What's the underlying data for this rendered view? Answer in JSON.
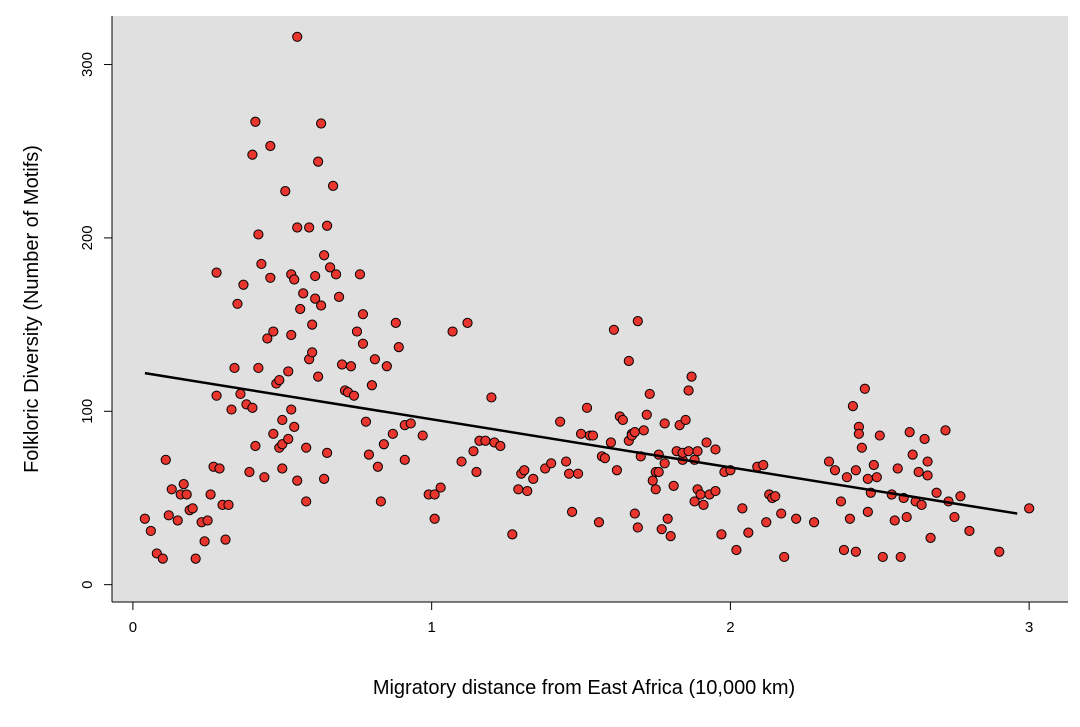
{
  "chart_data": {
    "type": "scatter",
    "title": "",
    "xlabel": "Migratory distance from East Africa (10,000 km)",
    "ylabel": "Folkloric Diversity (Number of Motifs)",
    "xlim": [
      -0.07,
      3.13
    ],
    "ylim": [
      -10,
      328
    ],
    "xticks": [
      0,
      1,
      2,
      3
    ],
    "yticks": [
      0,
      100,
      200,
      300
    ],
    "grid": false,
    "background_color": "#e0e0e0",
    "point_color": "#e8352e",
    "point_edge_color": "#000000",
    "line_color": "#000000",
    "trend_line": {
      "x": [
        0.04,
        2.96
      ],
      "y": [
        122,
        41
      ]
    },
    "points": [
      [
        0.04,
        38
      ],
      [
        0.06,
        31
      ],
      [
        0.08,
        18
      ],
      [
        0.1,
        15
      ],
      [
        0.11,
        72
      ],
      [
        0.12,
        40
      ],
      [
        0.13,
        55
      ],
      [
        0.15,
        37
      ],
      [
        0.16,
        52
      ],
      [
        0.17,
        58
      ],
      [
        0.18,
        52
      ],
      [
        0.19,
        43
      ],
      [
        0.2,
        44
      ],
      [
        0.21,
        15
      ],
      [
        0.23,
        36
      ],
      [
        0.24,
        25
      ],
      [
        0.25,
        37
      ],
      [
        0.26,
        52
      ],
      [
        0.27,
        68
      ],
      [
        0.28,
        180
      ],
      [
        0.28,
        109
      ],
      [
        0.29,
        67
      ],
      [
        0.3,
        46
      ],
      [
        0.31,
        26
      ],
      [
        0.32,
        46
      ],
      [
        0.33,
        101
      ],
      [
        0.34,
        125
      ],
      [
        0.35,
        162
      ],
      [
        0.36,
        110
      ],
      [
        0.37,
        173
      ],
      [
        0.38,
        104
      ],
      [
        0.39,
        65
      ],
      [
        0.4,
        102
      ],
      [
        0.4,
        248
      ],
      [
        0.41,
        267
      ],
      [
        0.41,
        80
      ],
      [
        0.42,
        125
      ],
      [
        0.42,
        202
      ],
      [
        0.43,
        185
      ],
      [
        0.44,
        62
      ],
      [
        0.45,
        142
      ],
      [
        0.46,
        253
      ],
      [
        0.46,
        177
      ],
      [
        0.47,
        146
      ],
      [
        0.47,
        87
      ],
      [
        0.48,
        116
      ],
      [
        0.49,
        118
      ],
      [
        0.49,
        79
      ],
      [
        0.5,
        95
      ],
      [
        0.5,
        81
      ],
      [
        0.5,
        67
      ],
      [
        0.51,
        227
      ],
      [
        0.52,
        123
      ],
      [
        0.52,
        84
      ],
      [
        0.53,
        144
      ],
      [
        0.53,
        101
      ],
      [
        0.53,
        179
      ],
      [
        0.54,
        91
      ],
      [
        0.54,
        176
      ],
      [
        0.55,
        60
      ],
      [
        0.55,
        206
      ],
      [
        0.55,
        316
      ],
      [
        0.56,
        159
      ],
      [
        0.57,
        168
      ],
      [
        0.58,
        79
      ],
      [
        0.58,
        48
      ],
      [
        0.59,
        130
      ],
      [
        0.59,
        206
      ],
      [
        0.6,
        134
      ],
      [
        0.6,
        150
      ],
      [
        0.61,
        165
      ],
      [
        0.61,
        178
      ],
      [
        0.62,
        120
      ],
      [
        0.62,
        244
      ],
      [
        0.63,
        161
      ],
      [
        0.63,
        266
      ],
      [
        0.64,
        61
      ],
      [
        0.64,
        190
      ],
      [
        0.65,
        207
      ],
      [
        0.65,
        76
      ],
      [
        0.66,
        183
      ],
      [
        0.67,
        230
      ],
      [
        0.68,
        179
      ],
      [
        0.69,
        166
      ],
      [
        0.7,
        127
      ],
      [
        0.71,
        112
      ],
      [
        0.72,
        111
      ],
      [
        0.73,
        126
      ],
      [
        0.74,
        109
      ],
      [
        0.75,
        146
      ],
      [
        0.76,
        179
      ],
      [
        0.77,
        156
      ],
      [
        0.77,
        139
      ],
      [
        0.78,
        94
      ],
      [
        0.79,
        75
      ],
      [
        0.8,
        115
      ],
      [
        0.81,
        130
      ],
      [
        0.82,
        68
      ],
      [
        0.83,
        48
      ],
      [
        0.84,
        81
      ],
      [
        0.85,
        126
      ],
      [
        0.87,
        87
      ],
      [
        0.88,
        151
      ],
      [
        0.89,
        137
      ],
      [
        0.91,
        72
      ],
      [
        0.91,
        92
      ],
      [
        0.93,
        93
      ],
      [
        0.97,
        86
      ],
      [
        0.99,
        52
      ],
      [
        1.01,
        52
      ],
      [
        1.01,
        38
      ],
      [
        1.03,
        56
      ],
      [
        1.07,
        146
      ],
      [
        1.1,
        71
      ],
      [
        1.12,
        151
      ],
      [
        1.14,
        77
      ],
      [
        1.15,
        65
      ],
      [
        1.16,
        83
      ],
      [
        1.18,
        83
      ],
      [
        1.2,
        108
      ],
      [
        1.21,
        82
      ],
      [
        1.23,
        80
      ],
      [
        1.27,
        29
      ],
      [
        1.29,
        55
      ],
      [
        1.3,
        64
      ],
      [
        1.31,
        66
      ],
      [
        1.32,
        54
      ],
      [
        1.34,
        61
      ],
      [
        1.38,
        67
      ],
      [
        1.4,
        70
      ],
      [
        1.43,
        94
      ],
      [
        1.45,
        71
      ],
      [
        1.46,
        64
      ],
      [
        1.47,
        42
      ],
      [
        1.49,
        64
      ],
      [
        1.5,
        87
      ],
      [
        1.52,
        102
      ],
      [
        1.53,
        86
      ],
      [
        1.54,
        86
      ],
      [
        1.56,
        36
      ],
      [
        1.57,
        74
      ],
      [
        1.58,
        73
      ],
      [
        1.6,
        82
      ],
      [
        1.61,
        147
      ],
      [
        1.62,
        66
      ],
      [
        1.63,
        97
      ],
      [
        1.64,
        95
      ],
      [
        1.66,
        83
      ],
      [
        1.66,
        129
      ],
      [
        1.67,
        87
      ],
      [
        1.67,
        86
      ],
      [
        1.68,
        88
      ],
      [
        1.68,
        41
      ],
      [
        1.69,
        33
      ],
      [
        1.69,
        152
      ],
      [
        1.7,
        74
      ],
      [
        1.71,
        89
      ],
      [
        1.72,
        98
      ],
      [
        1.73,
        110
      ],
      [
        1.74,
        60
      ],
      [
        1.75,
        65
      ],
      [
        1.75,
        55
      ],
      [
        1.76,
        65
      ],
      [
        1.76,
        75
      ],
      [
        1.77,
        32
      ],
      [
        1.78,
        70
      ],
      [
        1.78,
        93
      ],
      [
        1.79,
        38
      ],
      [
        1.8,
        28
      ],
      [
        1.81,
        57
      ],
      [
        1.82,
        77
      ],
      [
        1.83,
        92
      ],
      [
        1.84,
        72
      ],
      [
        1.84,
        76
      ],
      [
        1.85,
        95
      ],
      [
        1.86,
        112
      ],
      [
        1.86,
        77
      ],
      [
        1.87,
        120
      ],
      [
        1.88,
        72
      ],
      [
        1.88,
        48
      ],
      [
        1.89,
        55
      ],
      [
        1.89,
        77
      ],
      [
        1.9,
        52
      ],
      [
        1.91,
        46
      ],
      [
        1.92,
        82
      ],
      [
        1.93,
        52
      ],
      [
        1.95,
        78
      ],
      [
        1.95,
        54
      ],
      [
        1.97,
        29
      ],
      [
        1.98,
        65
      ],
      [
        2.0,
        66
      ],
      [
        2.02,
        20
      ],
      [
        2.04,
        44
      ],
      [
        2.06,
        30
      ],
      [
        2.09,
        68
      ],
      [
        2.11,
        69
      ],
      [
        2.12,
        36
      ],
      [
        2.13,
        52
      ],
      [
        2.14,
        50
      ],
      [
        2.15,
        51
      ],
      [
        2.17,
        41
      ],
      [
        2.18,
        16
      ],
      [
        2.22,
        38
      ],
      [
        2.28,
        36
      ],
      [
        2.33,
        71
      ],
      [
        2.35,
        66
      ],
      [
        2.37,
        48
      ],
      [
        2.38,
        20
      ],
      [
        2.39,
        62
      ],
      [
        2.4,
        38
      ],
      [
        2.41,
        103
      ],
      [
        2.42,
        19
      ],
      [
        2.42,
        66
      ],
      [
        2.43,
        91
      ],
      [
        2.43,
        87
      ],
      [
        2.44,
        79
      ],
      [
        2.45,
        113
      ],
      [
        2.46,
        42
      ],
      [
        2.46,
        61
      ],
      [
        2.47,
        53
      ],
      [
        2.48,
        69
      ],
      [
        2.49,
        62
      ],
      [
        2.5,
        86
      ],
      [
        2.51,
        16
      ],
      [
        2.54,
        52
      ],
      [
        2.55,
        37
      ],
      [
        2.56,
        67
      ],
      [
        2.57,
        16
      ],
      [
        2.58,
        50
      ],
      [
        2.59,
        39
      ],
      [
        2.6,
        88
      ],
      [
        2.61,
        75
      ],
      [
        2.62,
        48
      ],
      [
        2.63,
        65
      ],
      [
        2.64,
        46
      ],
      [
        2.65,
        84
      ],
      [
        2.66,
        63
      ],
      [
        2.66,
        71
      ],
      [
        2.67,
        27
      ],
      [
        2.69,
        53
      ],
      [
        2.72,
        89
      ],
      [
        2.73,
        48
      ],
      [
        2.75,
        39
      ],
      [
        2.77,
        51
      ],
      [
        2.8,
        31
      ],
      [
        2.9,
        19
      ],
      [
        3.0,
        44
      ]
    ]
  }
}
